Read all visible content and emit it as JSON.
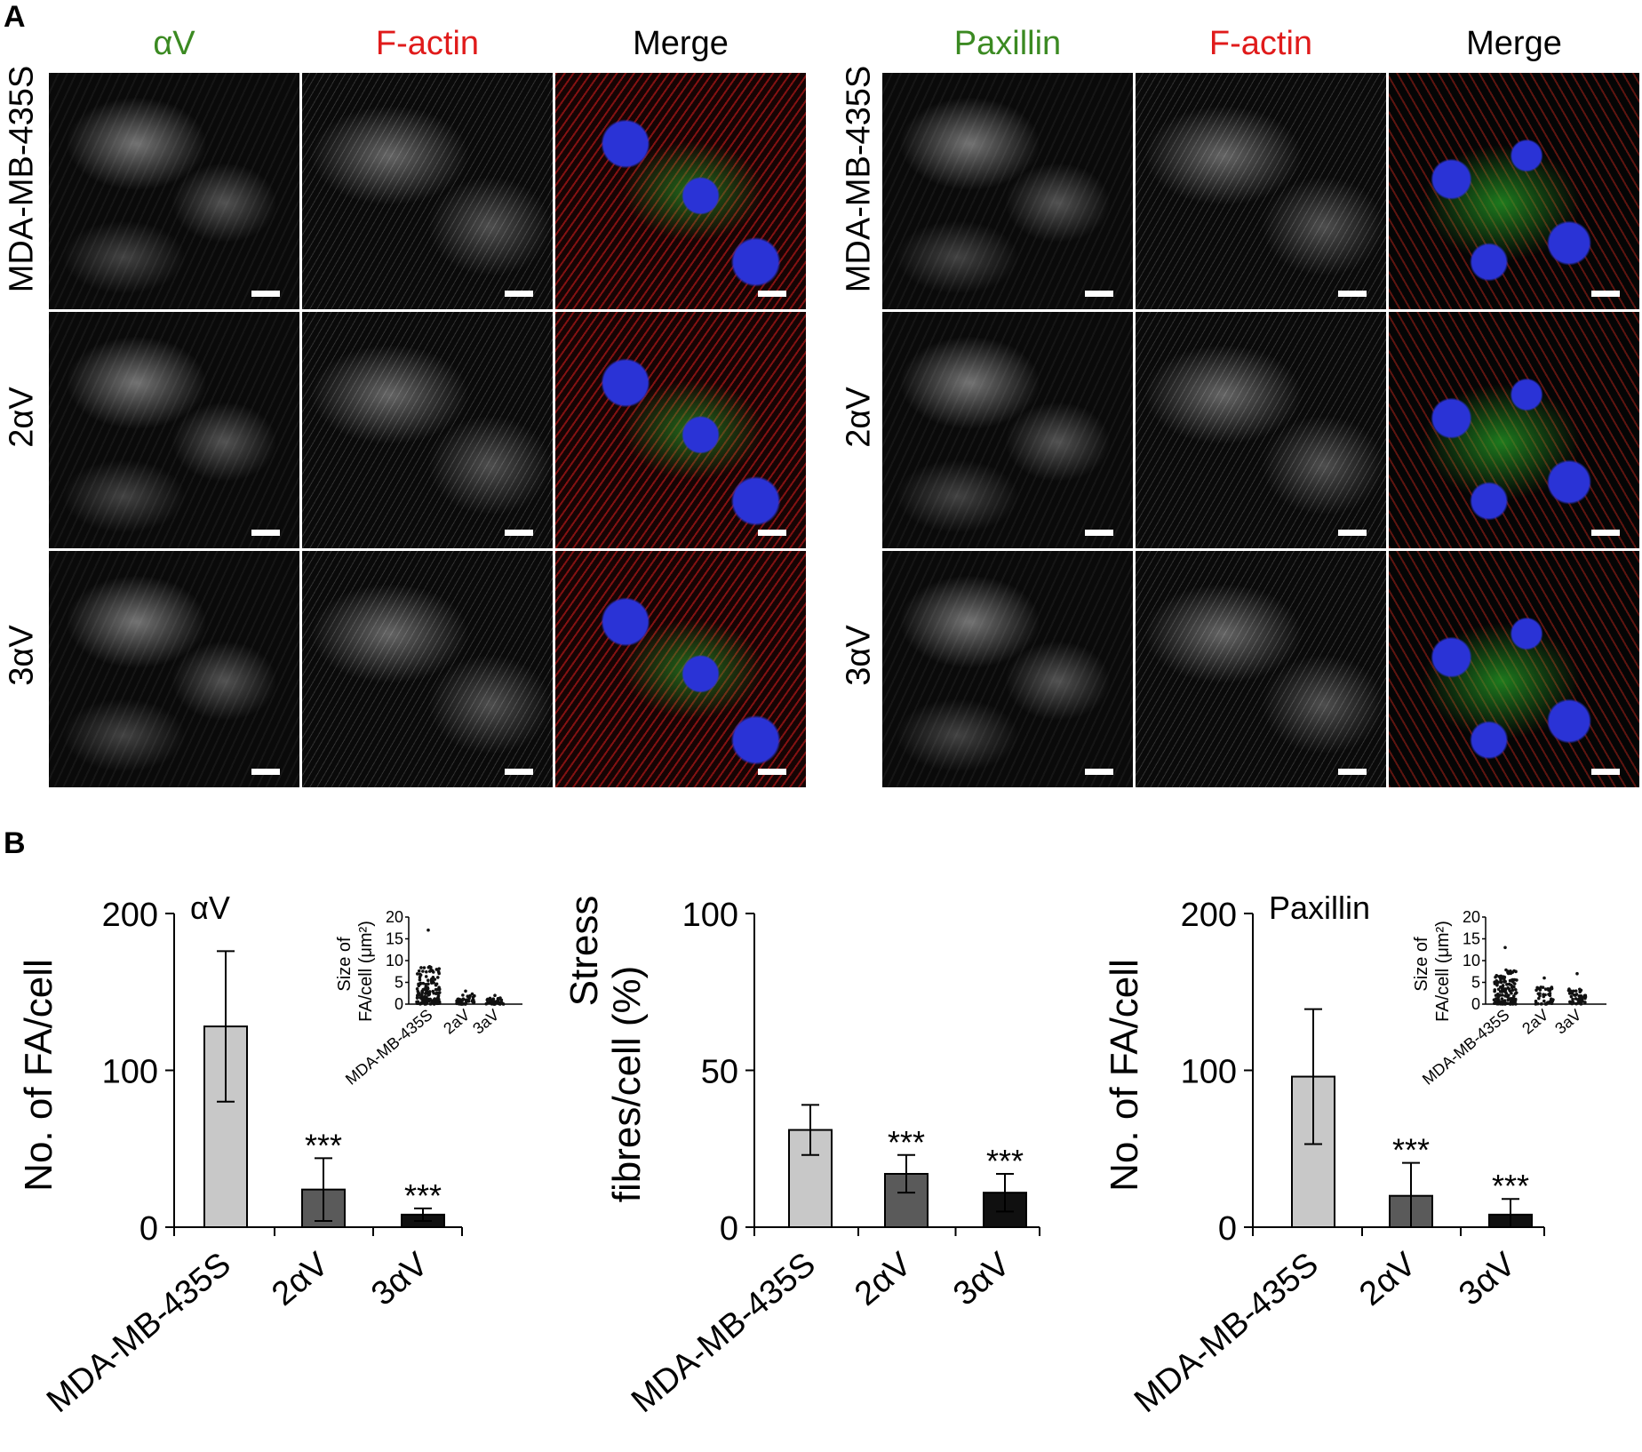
{
  "panel_a": {
    "letter": "A",
    "left": {
      "headers": [
        "αV",
        "F-actin",
        "Merge"
      ],
      "header_colors": [
        "#3b8a22",
        "#e01b1b",
        "#000000"
      ],
      "rows": [
        "MDA-MB-435S",
        "2αV",
        "3αV"
      ]
    },
    "right": {
      "headers": [
        "Paxillin",
        "F-actin",
        "Merge"
      ],
      "header_colors": [
        "#3b8a22",
        "#e01b1b",
        "#000000"
      ],
      "rows": [
        "MDA-MB-435S",
        "2αV",
        "3αV"
      ]
    }
  },
  "panel_b": {
    "letter": "B"
  },
  "chart_data": [
    {
      "type": "bar",
      "title": "αV",
      "ylabel": "No. of  FA/cell",
      "categories": [
        "MDA-MB-435S",
        "2αV",
        "3αV"
      ],
      "values": [
        128,
        24,
        8
      ],
      "errors": [
        48,
        20,
        4
      ],
      "significance": [
        "",
        "***",
        "***"
      ],
      "colors": [
        "#c8c8c8",
        "#5a5a5a",
        "#101010"
      ],
      "ylim": [
        0,
        200
      ],
      "yticks": [
        0,
        100,
        200
      ],
      "inset": {
        "type": "scatter",
        "ylabel": [
          "Size of",
          "FA/cell (μm²)"
        ],
        "categories": [
          "MDA-MB-435S",
          "2aV",
          "3aV"
        ],
        "yticks": [
          0,
          5,
          10,
          15,
          20
        ],
        "ylim": [
          0,
          20
        ],
        "max_values": [
          17,
          3,
          2
        ],
        "dense_max": [
          9,
          2.5,
          1.5
        ]
      }
    },
    {
      "type": "bar",
      "ylabel_lines": [
        "Stress",
        "fibres/cell (%)"
      ],
      "categories": [
        "MDA-MB-435S",
        "2αV",
        "3αV"
      ],
      "values": [
        31,
        17,
        11
      ],
      "errors": [
        8,
        6,
        6
      ],
      "significance": [
        "",
        "***",
        "***"
      ],
      "colors": [
        "#c8c8c8",
        "#5a5a5a",
        "#101010"
      ],
      "ylim": [
        0,
        100
      ],
      "yticks": [
        0,
        50,
        100
      ]
    },
    {
      "type": "bar",
      "title": "Paxillin",
      "ylabel": "No. of  FA/cell",
      "categories": [
        "MDA-MB-435S",
        "2αV",
        "3αV"
      ],
      "values": [
        96,
        20,
        8
      ],
      "errors": [
        43,
        21,
        10
      ],
      "significance": [
        "",
        "***",
        "***"
      ],
      "colors": [
        "#c8c8c8",
        "#5a5a5a",
        "#101010"
      ],
      "ylim": [
        0,
        200
      ],
      "yticks": [
        0,
        100,
        200
      ],
      "inset": {
        "type": "scatter",
        "ylabel": [
          "Size of",
          "FA/cell (μm²)"
        ],
        "categories": [
          "MDA-MB-435S",
          "2aV",
          "3aV"
        ],
        "yticks": [
          0,
          5,
          10,
          15,
          20
        ],
        "ylim": [
          0,
          20
        ],
        "max_values": [
          13,
          6,
          7
        ],
        "dense_max": [
          8,
          4,
          3.5
        ]
      }
    }
  ]
}
